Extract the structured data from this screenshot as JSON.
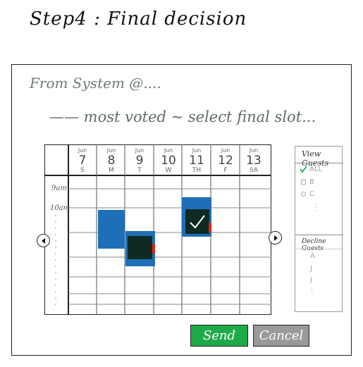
{
  "step_title": "Step4 : Final decision",
  "from_line": "From System @....",
  "instruction": "—— most voted ~ select final slot...",
  "calendar": {
    "days": [
      {
        "month": "Jun",
        "date": "7",
        "weekday": "S"
      },
      {
        "month": "Jun",
        "date": "8",
        "weekday": "M"
      },
      {
        "month": "Jun",
        "date": "9",
        "weekday": "T"
      },
      {
        "month": "Jun",
        "date": "10",
        "weekday": "W"
      },
      {
        "month": "Jun",
        "date": "11",
        "weekday": "TH"
      },
      {
        "month": "Jun",
        "date": "12",
        "weekday": "F"
      },
      {
        "month": "Jun",
        "date": "13",
        "weekday": "SA"
      }
    ],
    "times": [
      "9am",
      "10am"
    ],
    "slots": [
      {
        "day": "8",
        "state": "voted"
      },
      {
        "day": "9",
        "state": "voted-selected"
      },
      {
        "day": "11",
        "state": "final-choice"
      }
    ],
    "colors": {
      "voted": "#1e6fb8",
      "selected_fill": "#0f2a22",
      "marker": "#e0211b",
      "check": "#ffffff"
    }
  },
  "view_guests": {
    "title": "View Guests",
    "items": [
      {
        "label": "ALL",
        "checked": true
      },
      {
        "label": "B",
        "checked": false
      },
      {
        "label": "C",
        "checked": false
      }
    ]
  },
  "decline_guests": {
    "title": "Decline Guests",
    "items": [
      "A",
      "J",
      "J"
    ]
  },
  "buttons": {
    "send": "Send",
    "cancel": "Cancel",
    "send_color": "#1faa4a",
    "cancel_color": "#9a9a9a"
  },
  "icons": {
    "prev": "chevron-left-icon",
    "next": "chevron-right-icon",
    "check": "checkmark-icon"
  }
}
